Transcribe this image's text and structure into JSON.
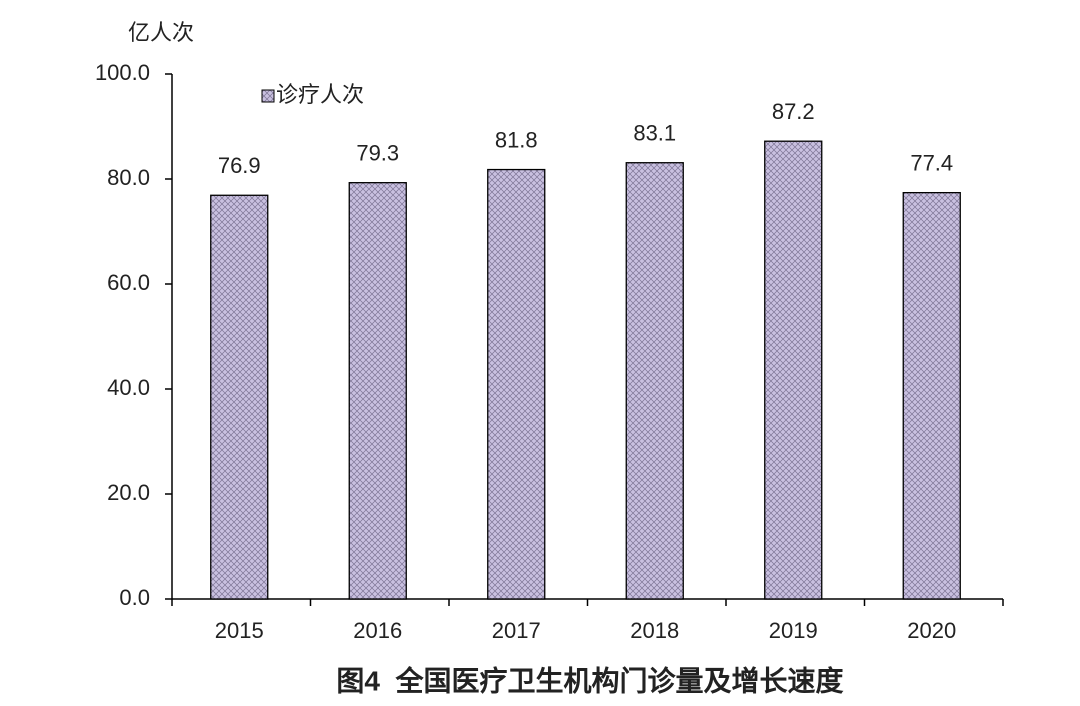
{
  "chart_data": {
    "type": "bar",
    "title": "图4  全国医疗卫生机构门诊量及增长速度",
    "y_axis_label": "亿人次",
    "categories": [
      "2015",
      "2016",
      "2017",
      "2018",
      "2019",
      "2020"
    ],
    "series": [
      {
        "name": "诊疗人次",
        "color": "#c9c0e0",
        "values": [
          76.9,
          79.3,
          81.8,
          83.1,
          87.2,
          77.4
        ]
      }
    ],
    "ylim": [
      0,
      100
    ],
    "yticks": [
      {
        "value": 0,
        "label": "0.0"
      },
      {
        "value": 20,
        "label": "20.0"
      },
      {
        "value": 40,
        "label": "40.0"
      },
      {
        "value": 60,
        "label": "60.0"
      },
      {
        "value": 80,
        "label": "80.0"
      },
      {
        "value": 100,
        "label": "100.0"
      }
    ],
    "grid": false,
    "legend": "top-left",
    "data_labels": true
  }
}
